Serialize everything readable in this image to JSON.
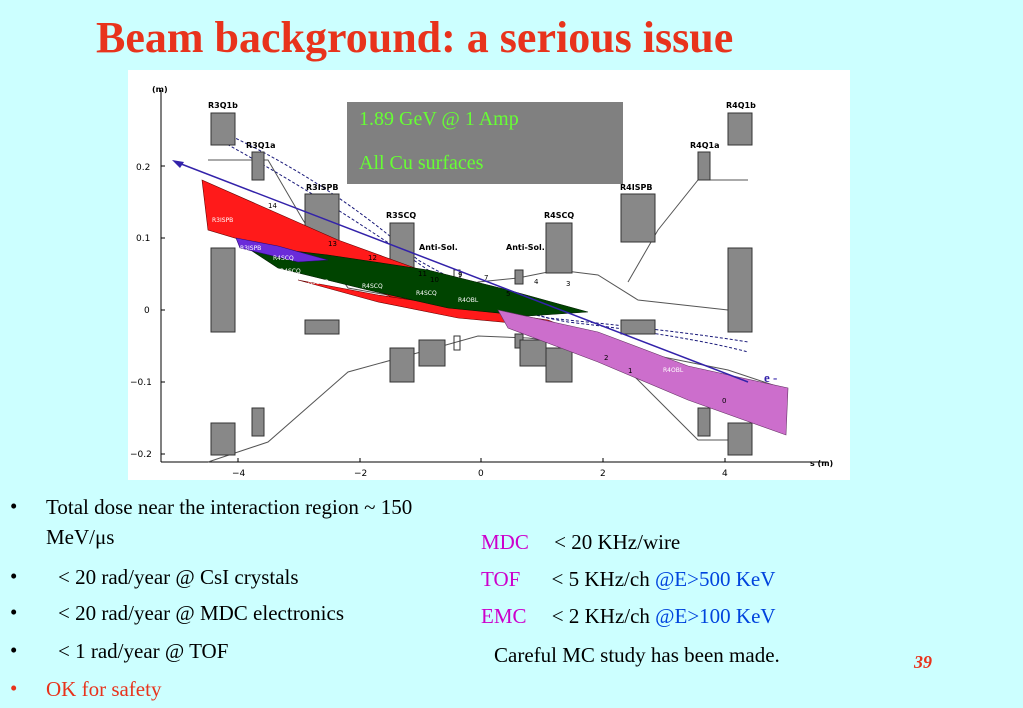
{
  "title": "Beam background: a serious issue",
  "overlay": {
    "line1": "1.89 GeV @ 1 Amp",
    "line2": "All Cu surfaces"
  },
  "diagram": {
    "y_unit": "(m)",
    "x_unit": "s  (m)",
    "y_ticks": [
      "0.2",
      "0.1",
      "0",
      "−0.1",
      "−0.2"
    ],
    "x_ticks": [
      "−4",
      "−2",
      "0",
      "2",
      "4"
    ],
    "magnet_labels": {
      "r3q1b": "R3Q1b",
      "r3q1a": "R3Q1a",
      "r3ispb": "R3ISPB",
      "r3scq": "R3SCQ",
      "antisol_left": "Anti-Sol.",
      "antisol_right": "Anti-Sol.",
      "r4scq": "R4SCQ",
      "r4ispb": "R4ISPB",
      "r4q1a": "R4Q1a",
      "r4q1b": "R4Q1b"
    },
    "band_labels": {
      "r3ispb": "R3ISPB",
      "r3ispb_b": "R3ISPB",
      "r4scq_a": "R4SCQ",
      "r4scq_b": "R4SCQ",
      "r3scq": "R3SCQ",
      "r4scq_c": "R4SCQ",
      "r4scq_d": "R4SCQ",
      "r4obl_a": "R4OBL",
      "r4obl_b": "R4OBL"
    },
    "numbers": [
      "14",
      "13",
      "12",
      "11",
      "10",
      "9",
      "7",
      "4",
      "3",
      "5",
      "2",
      "1",
      "0"
    ],
    "beam_label": "e -"
  },
  "bullets": [
    "Total dose near the interaction region ~ 150",
    "MeV/μs",
    "< 20 rad/year @ CsI crystals",
    "< 20 rad/year @ MDC electronics",
    "< 1 rad/year @ TOF",
    "OK for safety"
  ],
  "bullet_symbol": "•",
  "rates": {
    "mdc": {
      "det": "MDC",
      "rate": "< 20 KHz/wire"
    },
    "tof": {
      "det": "TOF",
      "rate": "< 5 KHz/ch",
      "cond": "@E>500 KeV"
    },
    "emc": {
      "det": "EMC",
      "rate": "< 2 KHz/ch",
      "cond": "@E>100 KeV"
    },
    "note": "Careful MC study has been made."
  },
  "page_number": "39",
  "colors": {
    "title": "#e8331c",
    "background": "#ccffff",
    "overlay_bg": "#808080",
    "overlay_text": "#66ff33",
    "detector": "#cc00cc",
    "condition": "#0044dd",
    "band_red": "#ff1a1a",
    "band_green": "#004400",
    "band_purple": "#6a2bd9",
    "band_magenta": "#cc6ecc",
    "magnet": "#888888"
  }
}
